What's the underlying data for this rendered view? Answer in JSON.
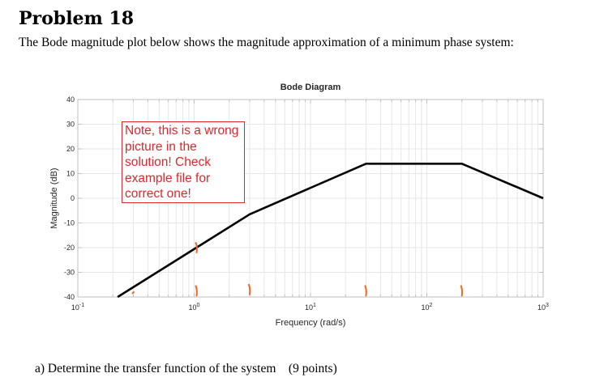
{
  "problem_title": "Problem 18",
  "intro_text": "The Bode magnitude plot below shows the magnitude approximation of a minimum phase system:",
  "question_text": "a) Determine the transfer function of the system (9 points)",
  "note_text": "Note, this is a wrong picture in the solution! Check example file for correct one!",
  "colors": {
    "line": "#000000",
    "note": "#e3242b",
    "marks": "#f26522",
    "grid": "#e6e6e6"
  },
  "chart_data": {
    "type": "line",
    "title": "Bode Diagram",
    "xlabel": "Frequency (rad/s)",
    "ylabel": "Magnitude (dB)",
    "xscale": "log",
    "xlim": [
      0.1,
      1000
    ],
    "ylim": [
      -40,
      40
    ],
    "x_ticks": [
      {
        "base": "10",
        "exp": "-1",
        "value": 0.1
      },
      {
        "base": "10",
        "exp": "0",
        "value": 1
      },
      {
        "base": "10",
        "exp": "1",
        "value": 10
      },
      {
        "base": "10",
        "exp": "2",
        "value": 100
      },
      {
        "base": "10",
        "exp": "3",
        "value": 1000
      }
    ],
    "y_ticks": [
      "40",
      "30",
      "20",
      "10",
      "0",
      "-10",
      "-20",
      "-30",
      "-40"
    ],
    "grid": true,
    "series": [
      {
        "x": [
          0.22,
          3,
          30,
          200,
          1000
        ],
        "y": [
          -40,
          -6.5,
          14,
          14,
          0
        ]
      }
    ],
    "marks": [
      {
        "x": 0.3,
        "y": -38.5
      },
      {
        "x": 1.05,
        "y": -20
      },
      {
        "x": 1.05,
        "y": -37.5
      },
      {
        "x": 3,
        "y": -37
      },
      {
        "x": 30,
        "y": -37.5
      },
      {
        "x": 200,
        "y": -37.5
      }
    ]
  }
}
